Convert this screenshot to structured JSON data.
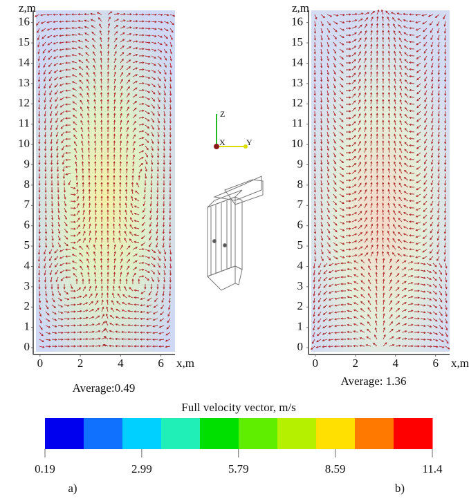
{
  "panels": [
    {
      "label": "a)",
      "x_axis_label": "x,m",
      "z_axis_label": "z,m",
      "xlim": [
        -0.2,
        6.7
      ],
      "zlim": [
        -0.2,
        16.6
      ],
      "xticks": [
        0,
        2,
        4,
        6
      ],
      "zticks": [
        0,
        1,
        2,
        3,
        4,
        5,
        6,
        7,
        8,
        9,
        10,
        11,
        12,
        13,
        14,
        15,
        16
      ],
      "average": "Average:0.49"
    },
    {
      "label": "b)",
      "x_axis_label": "x,m",
      "z_axis_label": "z,m",
      "xlim": [
        -0.2,
        6.7
      ],
      "zlim": [
        -0.2,
        16.6
      ],
      "xticks": [
        0,
        2,
        4,
        6
      ],
      "zticks": [
        0,
        1,
        2,
        3,
        4,
        5,
        6,
        7,
        8,
        9,
        10,
        11,
        12,
        13,
        14,
        15,
        16
      ],
      "average": "Average: 1.36"
    }
  ],
  "axes_icon": {
    "z": "Z",
    "x": "X",
    "y": "Y"
  },
  "colorbar": {
    "title": "Full velocity vector, m/s",
    "lim": [
      0.19,
      11.4
    ],
    "colors": [
      "#0000ee",
      "#1070ff",
      "#00d0ff",
      "#20f0b8",
      "#00e000",
      "#60ee00",
      "#b4f000",
      "#ffe000",
      "#ff7800",
      "#ff0000"
    ],
    "ticks": [
      0.19,
      2.99,
      5.79,
      8.59,
      11.4
    ]
  }
}
